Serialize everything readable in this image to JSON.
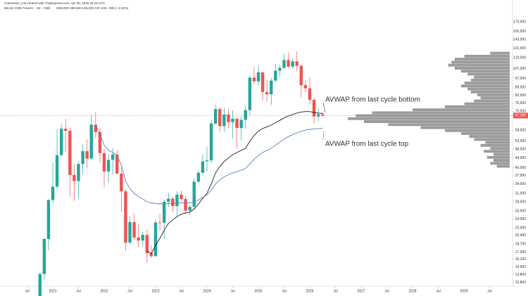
{
  "header": {
    "credit": "Cantonese_Cat created with TradingView.com, Apr 06, 2026 22:19 UTC",
    "symbol": "Bitcoin CME Futures · 1M · CME",
    "ohlc": "O68,000 H69,500 L66,000 C67,105 −895 (−1.32%)"
  },
  "chart_data": {
    "type": "candlestick",
    "log_scale": true,
    "grid": false,
    "up_color": "#26a69a",
    "down_color": "#ef5350",
    "x": [
      "2020-10",
      "2020-11",
      "2020-12",
      "2021-01",
      "2021-02",
      "2021-03",
      "2021-04",
      "2021-05",
      "2021-06",
      "2021-07",
      "2021-08",
      "2021-09",
      "2021-10",
      "2021-11",
      "2021-12",
      "2022-01",
      "2022-02",
      "2022-03",
      "2022-04",
      "2022-05",
      "2022-06",
      "2022-07",
      "2022-08",
      "2022-09",
      "2022-10",
      "2022-11",
      "2022-12",
      "2023-01",
      "2023-02",
      "2023-03",
      "2023-04",
      "2023-05",
      "2023-06",
      "2023-07",
      "2023-08",
      "2023-09",
      "2023-10",
      "2023-11",
      "2023-12",
      "2024-01",
      "2024-02",
      "2024-03",
      "2024-04",
      "2024-05",
      "2024-06",
      "2024-07",
      "2024-08",
      "2024-09",
      "2024-10",
      "2024-11",
      "2024-12",
      "2025-01",
      "2025-02",
      "2025-03",
      "2025-04",
      "2025-05",
      "2025-06",
      "2025-07",
      "2025-08",
      "2025-09",
      "2025-10",
      "2025-11",
      "2025-12",
      "2026-01",
      "2026-02",
      "2026-03",
      "2026-04"
    ],
    "open": [
      10800,
      13900,
      19700,
      29000,
      33100,
      45300,
      58900,
      57700,
      37200,
      35000,
      41500,
      47100,
      43800,
      61300,
      57000,
      46200,
      38500,
      43200,
      45600,
      37700,
      31600,
      19000,
      23300,
      20000,
      19400,
      20500,
      17100,
      16600,
      23200,
      23100,
      28500,
      29400,
      27300,
      30600,
      29300,
      26100,
      27100,
      34800,
      38000,
      42600,
      43000,
      62000,
      71600,
      60400,
      67800,
      62900,
      65000,
      59300,
      64300,
      70800,
      97800,
      94300,
      103000,
      84800,
      82900,
      95000,
      104800,
      107800,
      116500,
      109200,
      115000,
      110000,
      90800,
      88000,
      78500,
      66500,
      68000
    ],
    "high": [
      14100,
      19900,
      29300,
      42000,
      58500,
      62000,
      65000,
      59700,
      41500,
      42500,
      50500,
      53000,
      67500,
      69500,
      59500,
      48000,
      45800,
      48500,
      47600,
      40000,
      32300,
      24700,
      25300,
      22800,
      21100,
      21700,
      18500,
      23900,
      25300,
      29200,
      31100,
      29900,
      31600,
      31900,
      30300,
      27500,
      36000,
      38900,
      45500,
      49200,
      64500,
      74500,
      73000,
      72500,
      72000,
      70500,
      65500,
      66500,
      74000,
      100000,
      109000,
      110000,
      103500,
      95500,
      97500,
      112000,
      111000,
      124000,
      125500,
      118000,
      127000,
      111000,
      95000,
      98000,
      80000,
      72000,
      69500
    ],
    "low": [
      10500,
      13200,
      17600,
      28000,
      32300,
      44900,
      47000,
      30000,
      28800,
      29400,
      37400,
      39700,
      43300,
      53500,
      42000,
      32900,
      34300,
      37300,
      37500,
      25800,
      17500,
      18700,
      19600,
      18100,
      18200,
      15500,
      16300,
      16500,
      21400,
      19600,
      27000,
      25800,
      24700,
      28800,
      25200,
      24900,
      26600,
      34200,
      37800,
      38600,
      42000,
      61000,
      57000,
      57000,
      59000,
      53500,
      48500,
      52500,
      58800,
      67000,
      92000,
      90000,
      78000,
      77000,
      74500,
      93500,
      98600,
      106000,
      108000,
      107500,
      104000,
      80500,
      84500,
      75000,
      62000,
      63500,
      66000
    ],
    "close": [
      13900,
      19700,
      29000,
      33100,
      45300,
      58900,
      57700,
      37200,
      35000,
      41500,
      47100,
      43800,
      61300,
      57000,
      46200,
      38500,
      43200,
      45600,
      37700,
      31600,
      19000,
      23300,
      20000,
      19400,
      20500,
      17100,
      16600,
      23200,
      23100,
      28500,
      29400,
      27300,
      30600,
      29300,
      26100,
      27100,
      34800,
      38000,
      42600,
      43000,
      62000,
      71600,
      60400,
      67800,
      62900,
      65000,
      59300,
      64300,
      70800,
      97800,
      94300,
      103000,
      84800,
      82900,
      95000,
      104800,
      107800,
      116500,
      109200,
      115000,
      110000,
      90800,
      88000,
      78500,
      66500,
      68000,
      67105
    ],
    "series": [
      {
        "name": "AVWAP from last cycle bottom",
        "color": "#1e1e1e",
        "values": [
          null,
          null,
          null,
          null,
          null,
          null,
          null,
          null,
          null,
          null,
          null,
          null,
          null,
          null,
          null,
          null,
          null,
          null,
          null,
          null,
          null,
          null,
          null,
          null,
          null,
          17500,
          17000,
          18500,
          19800,
          21500,
          23000,
          23800,
          24600,
          25200,
          25500,
          25700,
          26500,
          27800,
          29500,
          31000,
          34000,
          38000,
          40500,
          42500,
          44000,
          45500,
          46500,
          47500,
          48500,
          52000,
          55000,
          57500,
          59000,
          60000,
          61000,
          62500,
          64000,
          65500,
          66800,
          67800,
          68800,
          69500,
          69800,
          69800,
          69200,
          68800,
          68500
        ]
      },
      {
        "name": "AVWAP from last cycle top",
        "color": "#5b7fc0",
        "values": [
          null,
          null,
          null,
          null,
          null,
          null,
          null,
          null,
          null,
          null,
          null,
          null,
          null,
          61000,
          56000,
          50000,
          47500,
          46500,
          45000,
          41000,
          35000,
          32500,
          31000,
          30000,
          29300,
          28500,
          28200,
          28000,
          27900,
          27900,
          28000,
          28000,
          28100,
          28200,
          28200,
          28200,
          28500,
          29000,
          29800,
          30500,
          32000,
          34000,
          35500,
          36500,
          37300,
          38000,
          38500,
          39000,
          39700,
          41500,
          43500,
          45000,
          46500,
          47500,
          48500,
          50000,
          51500,
          53000,
          54500,
          55500,
          56500,
          57500,
          58000,
          58500,
          58800,
          59000,
          59200
        ]
      }
    ],
    "last_price": {
      "value": 67105,
      "label": "67,105"
    },
    "volume_profile": {
      "color": "#8a8a8a",
      "prices": [
        40000,
        41200,
        42400,
        43700,
        45000,
        46400,
        47800,
        49200,
        50700,
        52200,
        53800,
        55400,
        57000,
        58700,
        60500,
        62300,
        64200,
        66100,
        68100,
        70100,
        72200,
        74400,
        76600,
        78900,
        81300,
        83700,
        86200,
        88800,
        91500,
        94200,
        97000,
        99900,
        102900,
        106000,
        109200,
        112500,
        115900,
        119400,
        123000
      ],
      "values": [
        8,
        12,
        10,
        14,
        10,
        16,
        12,
        18,
        15,
        22,
        25,
        30,
        40,
        55,
        75,
        90,
        100,
        95,
        85,
        60,
        40,
        28,
        22,
        18,
        20,
        24,
        26,
        30,
        28,
        24,
        22,
        26,
        30,
        34,
        38,
        36,
        34,
        28,
        12
      ]
    },
    "ylim": [
      12500,
      200000
    ],
    "yticks": [
      {
        "value": 170000,
        "label": "170,000"
      },
      {
        "value": 155000,
        "label": "155,000"
      },
      {
        "value": 143000,
        "label": "143,000"
      },
      {
        "value": 131000,
        "label": "131,000"
      },
      {
        "value": 119000,
        "label": "119,000"
      },
      {
        "value": 107000,
        "label": "107,000"
      },
      {
        "value": 97000,
        "label": "97,000"
      },
      {
        "value": 89000,
        "label": "89,000"
      },
      {
        "value": 82000,
        "label": "82,000"
      },
      {
        "value": 76000,
        "label": "76,000"
      },
      {
        "value": 70000,
        "label": "70,000"
      },
      {
        "value": 58000,
        "label": "58,000"
      },
      {
        "value": 52000,
        "label": "52,000"
      },
      {
        "value": 48000,
        "label": "48,000"
      },
      {
        "value": 44000,
        "label": "44,000"
      },
      {
        "value": 40000,
        "label": "40,000"
      },
      {
        "value": 37000,
        "label": "37,000"
      },
      {
        "value": 34000,
        "label": "34,000"
      },
      {
        "value": 31000,
        "label": "31,000"
      },
      {
        "value": 28500,
        "label": "28,500"
      },
      {
        "value": 26000,
        "label": "26,000"
      },
      {
        "value": 24000,
        "label": "24,000"
      },
      {
        "value": 22000,
        "label": "22,000"
      },
      {
        "value": 20400,
        "label": "20,400"
      },
      {
        "value": 18700,
        "label": "18,700"
      },
      {
        "value": 17300,
        "label": "17,300"
      },
      {
        "value": 16100,
        "label": "16,100"
      },
      {
        "value": 14900,
        "label": "14,900"
      },
      {
        "value": 13800,
        "label": "13,800"
      },
      {
        "value": 12800,
        "label": "12,800"
      }
    ],
    "xticks": [
      {
        "value": "2020-07",
        "label": "Jul"
      },
      {
        "value": "2021-01",
        "label": "2021"
      },
      {
        "value": "2021-07",
        "label": "Jul"
      },
      {
        "value": "2022-01",
        "label": "2022"
      },
      {
        "value": "2022-07",
        "label": "Jul"
      },
      {
        "value": "2023-01",
        "label": "2023"
      },
      {
        "value": "2023-07",
        "label": "Jul"
      },
      {
        "value": "2024-01",
        "label": "2024"
      },
      {
        "value": "2024-07",
        "label": "Jul"
      },
      {
        "value": "2025-01",
        "label": "2025"
      },
      {
        "value": "2025-07",
        "label": "Jul"
      },
      {
        "value": "2026-01",
        "label": "2026"
      },
      {
        "value": "2026-07",
        "label": "Jul"
      },
      {
        "value": "2027-01",
        "label": "2027"
      },
      {
        "value": "2027-07",
        "label": "Jul"
      },
      {
        "value": "2028-01",
        "label": "2028"
      },
      {
        "value": "2028-07",
        "label": "Jul"
      },
      {
        "value": "2029-01",
        "label": "2029"
      },
      {
        "value": "2029-07",
        "label": "Jul"
      }
    ]
  }
}
